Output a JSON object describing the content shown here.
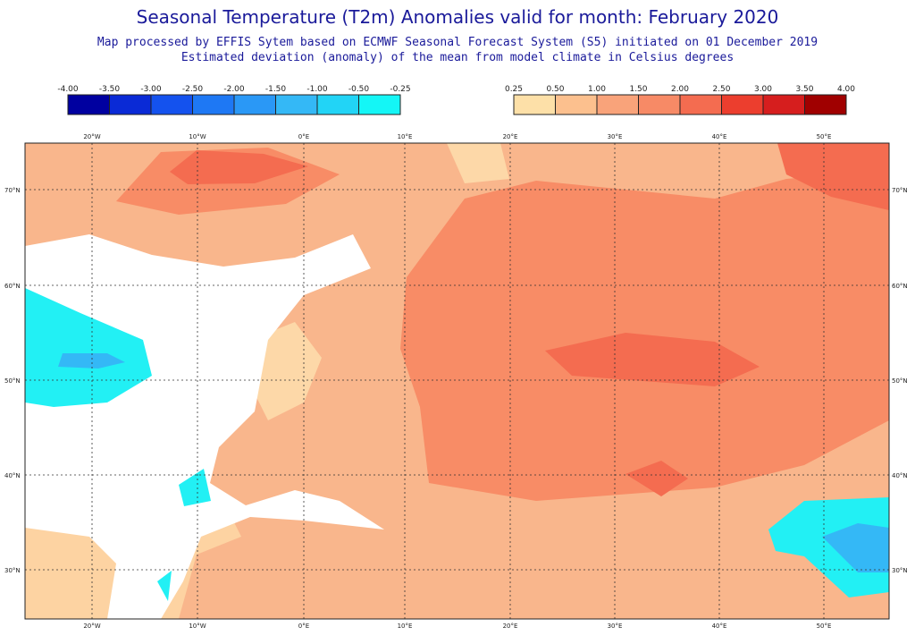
{
  "header": {
    "title": "Seasonal Temperature (T2m) Anomalies valid for month: February 2020",
    "subtitle": [
      "Map processed by EFFIS Sytem based on ECMWF Seasonal Forecast System (S5) initiated on 01 December 2019",
      "Estimated deviation (anomaly) of the mean from model climate in Celsius degrees"
    ]
  },
  "legend": {
    "negative": {
      "labels": [
        "-4.00",
        "-3.50",
        "-3.00",
        "-2.50",
        "-2.00",
        "-1.50",
        "-1.00",
        "-0.50",
        "-0.25"
      ],
      "colors": [
        "#0000a0",
        "#0a2ad6",
        "#1452ee",
        "#1e78f4",
        "#2a98f6",
        "#34b8f6",
        "#22d4f6",
        "#14f6f6"
      ]
    },
    "positive": {
      "labels": [
        "0.25",
        "0.50",
        "1.00",
        "1.50",
        "2.00",
        "2.50",
        "3.00",
        "3.50",
        "4.00"
      ],
      "colors": [
        "#fde0a8",
        "#fcc08e",
        "#f9a37a",
        "#f78a66",
        "#f46c50",
        "#ec3e2e",
        "#d61e1e",
        "#a00000"
      ]
    }
  },
  "map": {
    "lon_labels": [
      "20°W",
      "10°W",
      "0°E",
      "10°E",
      "20°E",
      "30°E",
      "40°E",
      "50°E"
    ],
    "lat_labels": [
      "70°N",
      "60°N",
      "50°N",
      "40°N",
      "30°N"
    ]
  }
}
